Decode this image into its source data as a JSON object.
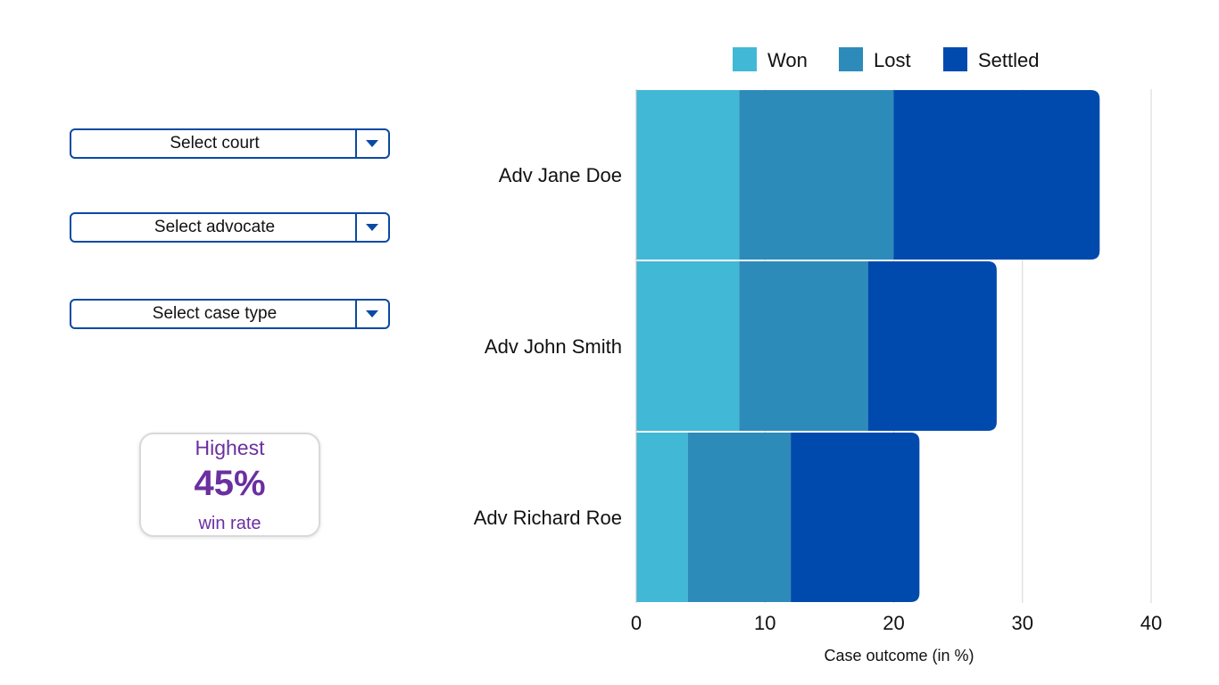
{
  "filters": {
    "court": "Select court",
    "advocate": "Select advocate",
    "case_type": "Select case type"
  },
  "kpi": {
    "label_top": "Highest",
    "value": "45%",
    "label_bottom": "win rate"
  },
  "chart_data": {
    "type": "bar",
    "orientation": "horizontal",
    "stacked": true,
    "categories": [
      "Adv Jane Doe",
      "Adv John Smith",
      "Adv Richard Roe"
    ],
    "series": [
      {
        "name": "Won",
        "values": [
          8,
          8,
          4
        ],
        "color": "#41b8d5"
      },
      {
        "name": "Lost",
        "values": [
          12,
          10,
          8
        ],
        "color": "#2d8bba"
      },
      {
        "name": "Settled",
        "values": [
          16,
          10,
          10
        ],
        "color": "#004aad"
      }
    ],
    "xlabel": "Case outcome (in %)",
    "ylabel": "",
    "xlim": [
      0,
      40
    ],
    "xticks": [
      0,
      10,
      20,
      30,
      40
    ],
    "grid": true,
    "legend_position": "top"
  }
}
